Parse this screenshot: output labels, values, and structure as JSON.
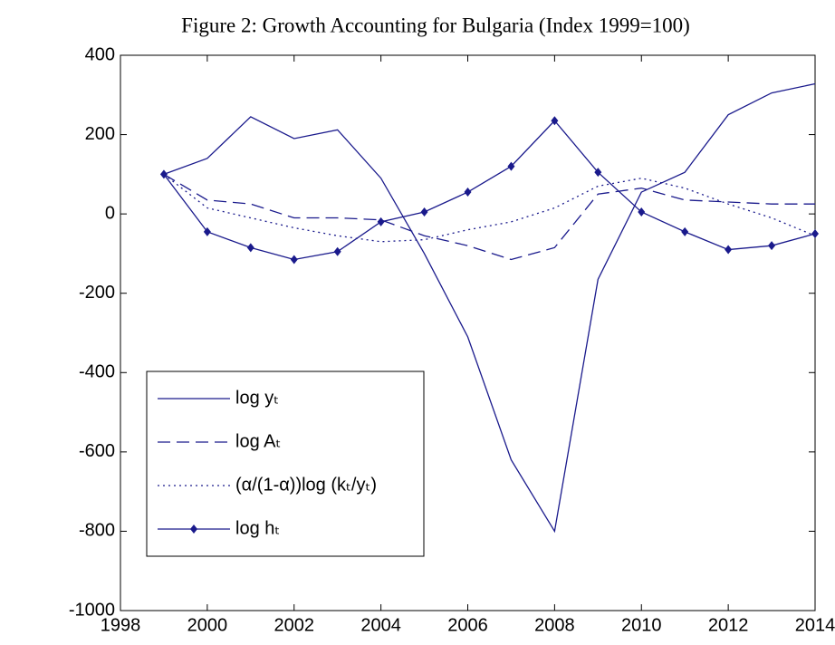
{
  "chart_data": {
    "type": "line",
    "title": "Figure 2: Growth Accounting for Bulgaria (Index 1999=100)",
    "x": [
      1999,
      2000,
      2001,
      2002,
      2003,
      2004,
      2005,
      2006,
      2007,
      2008,
      2009,
      2010,
      2011,
      2012,
      2013,
      2014
    ],
    "series": [
      {
        "name": "log yₜ",
        "color": "#1a1a8c",
        "dash": "solid",
        "marker": false,
        "values": [
          100,
          140,
          245,
          190,
          212,
          90,
          -100,
          -310,
          -620,
          -800,
          -165,
          55,
          105,
          250,
          305,
          328
        ]
      },
      {
        "name": "log Aₜ",
        "color": "#1a1a8c",
        "dash": "dashed",
        "marker": false,
        "values": [
          100,
          35,
          25,
          -10,
          -10,
          -15,
          -55,
          -80,
          -115,
          -85,
          50,
          65,
          35,
          30,
          25,
          25
        ]
      },
      {
        "name": "(α/(1-α))log (kₜ/yₜ)",
        "color": "#1a1a8c",
        "dash": "dotted",
        "marker": false,
        "values": [
          100,
          15,
          -10,
          -35,
          -55,
          -70,
          -65,
          -40,
          -20,
          15,
          70,
          90,
          65,
          25,
          -10,
          -55
        ]
      },
      {
        "name": "log hₜ",
        "color": "#1a1a8c",
        "dash": "solid",
        "marker": true,
        "values": [
          100,
          -45,
          -85,
          -115,
          -95,
          -20,
          5,
          55,
          120,
          235,
          105,
          5,
          -45,
          -90,
          -80,
          -50
        ]
      }
    ],
    "xlim": [
      1998,
      2014
    ],
    "xticks": [
      1998,
      2000,
      2002,
      2004,
      2006,
      2008,
      2010,
      2012,
      2014
    ],
    "ylim": [
      -1000,
      400
    ],
    "yticks": [
      -1000,
      -800,
      -600,
      -400,
      -200,
      0,
      200,
      400
    ],
    "legend": "lower-left",
    "grid": false
  }
}
